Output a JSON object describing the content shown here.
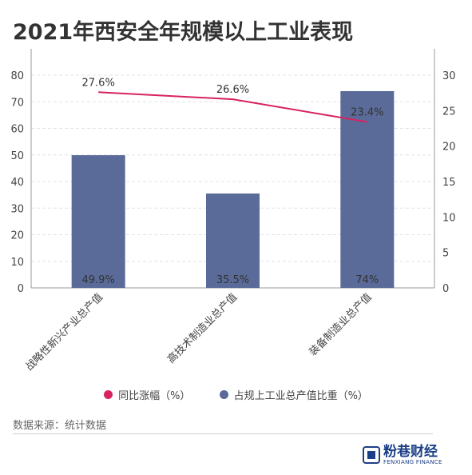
{
  "title": "2021年西安全年规模以上工业表现",
  "source": "数据来源：统计数据",
  "logo": {
    "name": "粉巷财经",
    "sub": "FENXIANG FINANCE"
  },
  "colors": {
    "bar": "#5a6b99",
    "line": "#d7235e",
    "axis": "#999999",
    "grid": "#e3e3e3",
    "text": "#444444"
  },
  "chart_data": {
    "type": "bar+line",
    "categories": [
      "战略性新兴产业总产值",
      "高技术制造业总产值",
      "装备制造业总产值"
    ],
    "series": [
      {
        "name": "同比涨幅（%）",
        "type": "line",
        "axis": "right",
        "values": [
          27.6,
          26.6,
          23.4
        ],
        "labels": [
          "27.6%",
          "26.6%",
          "23.4%"
        ]
      },
      {
        "name": "占规上工业总产值比重（%）",
        "type": "bar",
        "axis": "left",
        "values": [
          49.9,
          35.5,
          74
        ],
        "labels": [
          "49.9%",
          "35.5%",
          "74%"
        ]
      }
    ],
    "y_left": {
      "min": 0,
      "max": 80,
      "ticks": [
        "0",
        "10",
        "20",
        "30",
        "40",
        "50",
        "60",
        "70",
        "80"
      ]
    },
    "y_right": {
      "min": 0,
      "max": 30,
      "ticks": [
        "0",
        "5",
        "10",
        "15",
        "20",
        "25",
        "30"
      ]
    },
    "grid": true,
    "legend": "bottom"
  }
}
